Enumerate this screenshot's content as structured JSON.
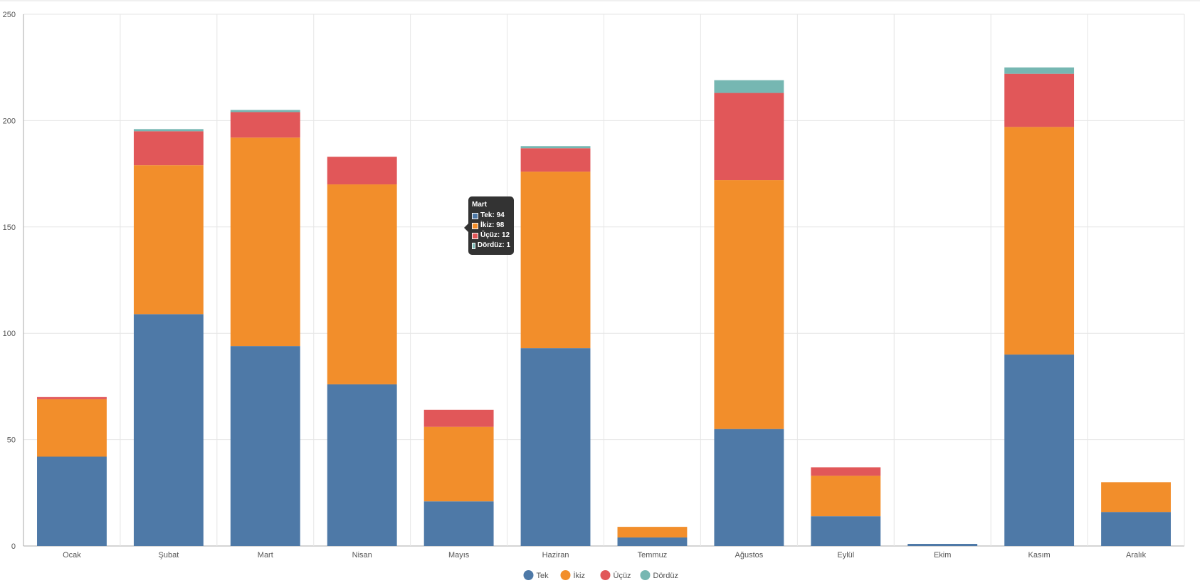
{
  "chart_data": {
    "type": "bar",
    "stacked": true,
    "categories": [
      "Ocak",
      "Şubat",
      "Mart",
      "Nisan",
      "Mayıs",
      "Haziran",
      "Temmuz",
      "Ağustos",
      "Eylül",
      "Ekim",
      "Kasım",
      "Aralık"
    ],
    "series": [
      {
        "name": "Tek",
        "color": "#4e79a7",
        "values": [
          42,
          109,
          94,
          76,
          21,
          93,
          4,
          55,
          14,
          1,
          90,
          16
        ]
      },
      {
        "name": "İkiz",
        "color": "#f28e2b",
        "values": [
          27,
          70,
          98,
          94,
          35,
          83,
          5,
          117,
          19,
          0,
          107,
          14
        ]
      },
      {
        "name": "Üçüz",
        "color": "#e15759",
        "values": [
          1,
          16,
          12,
          13,
          8,
          11,
          0,
          41,
          4,
          0,
          25,
          0
        ]
      },
      {
        "name": "Dördüz",
        "color": "#76b7b2",
        "values": [
          0,
          1,
          1,
          0,
          0,
          1,
          0,
          6,
          0,
          0,
          3,
          0
        ]
      }
    ],
    "yticks": [
      0,
      50,
      100,
      150,
      200,
      250
    ],
    "ylim": [
      0,
      250
    ],
    "grid": true,
    "legend": "bottom-center",
    "tooltip": {
      "title": "Mart",
      "rows": [
        {
          "label": "Tek: 94",
          "color": "#4e79a7"
        },
        {
          "label": "İkiz: 98",
          "color": "#f28e2b"
        },
        {
          "label": "Üçüz: 12",
          "color": "#e15759"
        },
        {
          "label": "Dördüz: 1",
          "color": "#76b7b2"
        }
      ]
    }
  }
}
